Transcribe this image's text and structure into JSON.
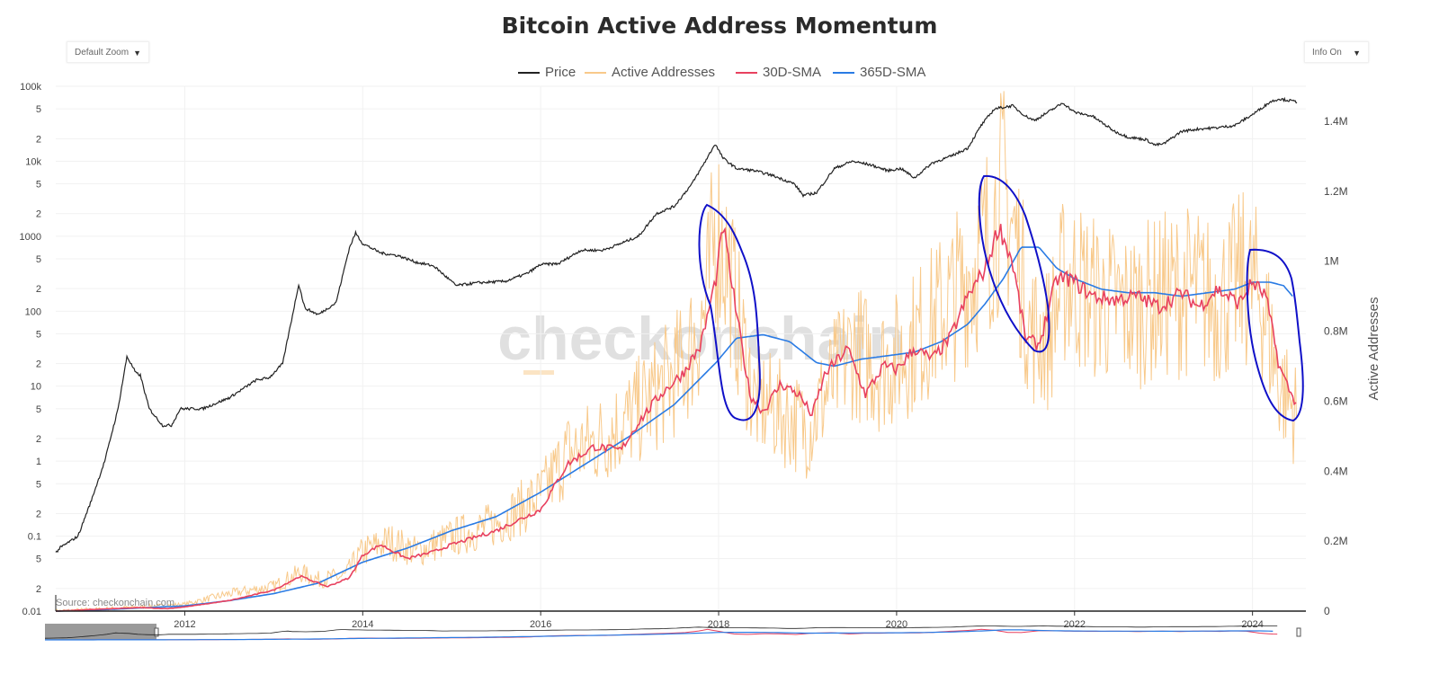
{
  "header": {
    "title": "Bitcoin Active Address Momentum"
  },
  "controls": {
    "zoom_label": "Default Zoom",
    "info_label": "Info On"
  },
  "legend": [
    {
      "label": "Price",
      "color": "#222222"
    },
    {
      "label": "Active Addresses",
      "color": "#f8c98a"
    },
    {
      "label": "30D-SMA",
      "color": "#e8415f"
    },
    {
      "label": "365D-SMA",
      "color": "#2a7be4"
    }
  ],
  "watermark": "checkonchain",
  "source": "Source: checkonchain.com",
  "chart_data": {
    "type": "line",
    "title": "Bitcoin Active Address Momentum",
    "xlabel": "",
    "x_ticks": [
      "2012",
      "2014",
      "2016",
      "2018",
      "2020",
      "2022",
      "2024"
    ],
    "y_left": {
      "scale": "log",
      "range": [
        0.01,
        100000
      ],
      "tick_labels": [
        "0.01",
        "2",
        "5",
        "0.1",
        "2",
        "5",
        "1",
        "2",
        "5",
        "10",
        "2",
        "5",
        "100",
        "2",
        "5",
        "1000",
        "2",
        "5",
        "10k",
        "2",
        "5",
        "100k"
      ]
    },
    "y_right": {
      "label": "Active Addresses",
      "range": [
        0,
        1500000
      ],
      "tick_labels": [
        "0",
        "0.2M",
        "0.4M",
        "0.6M",
        "0.8M",
        "1M",
        "1.2M",
        "1.4M"
      ]
    },
    "series": [
      {
        "name": "Price",
        "axis": "left",
        "color": "#222222",
        "x": [
          2010.55,
          2010.6,
          2010.8,
          2010.95,
          2011.1,
          2011.25,
          2011.35,
          2011.45,
          2011.5,
          2011.6,
          2011.75,
          2011.85,
          2011.95,
          2012.2,
          2012.5,
          2012.8,
          2012.95,
          2013.1,
          2013.25,
          2013.28,
          2013.35,
          2013.5,
          2013.7,
          2013.85,
          2013.92,
          2014.0,
          2014.2,
          2014.4,
          2014.6,
          2014.8,
          2015.05,
          2015.3,
          2015.6,
          2015.85,
          2016.0,
          2016.2,
          2016.45,
          2016.7,
          2016.9,
          2017.1,
          2017.3,
          2017.5,
          2017.7,
          2017.85,
          2017.96,
          2018.05,
          2018.2,
          2018.4,
          2018.6,
          2018.85,
          2018.95,
          2019.1,
          2019.3,
          2019.5,
          2019.7,
          2019.9,
          2020.05,
          2020.2,
          2020.4,
          2020.6,
          2020.8,
          2020.95,
          2021.1,
          2021.3,
          2021.45,
          2021.55,
          2021.7,
          2021.87,
          2022.0,
          2022.2,
          2022.45,
          2022.6,
          2022.8,
          2022.9,
          2023.0,
          2023.2,
          2023.4,
          2023.6,
          2023.8,
          2024.0,
          2024.2,
          2024.3,
          2024.5
        ],
        "y": [
          0.06,
          0.07,
          0.1,
          0.3,
          1,
          5,
          25,
          15,
          14,
          5,
          3,
          3,
          5,
          5,
          7,
          12,
          13,
          20,
          150,
          230,
          110,
          90,
          130,
          700,
          1100,
          800,
          600,
          550,
          450,
          400,
          220,
          240,
          250,
          320,
          420,
          430,
          650,
          650,
          800,
          1000,
          2000,
          2500,
          5000,
          10000,
          17000,
          11000,
          8000,
          7500,
          6500,
          5000,
          3500,
          3800,
          8000,
          10000,
          9000,
          7500,
          8000,
          6000,
          9500,
          11500,
          15000,
          30000,
          50000,
          55000,
          40000,
          35000,
          45000,
          60000,
          45000,
          40000,
          25000,
          21000,
          19500,
          16500,
          17000,
          25000,
          27000,
          28000,
          30000,
          42000,
          62000,
          68000,
          62000
        ]
      },
      {
        "name": "Active Addresses",
        "axis": "right",
        "color": "#f8c98a",
        "x": [
          2010.55,
          2011.0,
          2011.5,
          2012.0,
          2012.5,
          2013.0,
          2013.3,
          2013.5,
          2013.8,
          2014.0,
          2014.3,
          2014.6,
          2015.0,
          2015.5,
          2016.0,
          2016.3,
          2016.6,
          2017.0,
          2017.3,
          2017.6,
          2017.85,
          2017.97,
          2018.1,
          2018.2,
          2018.4,
          2018.6,
          2018.8,
          2019.0,
          2019.2,
          2019.5,
          2019.8,
          2020.0,
          2020.3,
          2020.6,
          2020.9,
          2021.0,
          2021.2,
          2021.35,
          2021.5,
          2021.7,
          2021.9,
          2022.2,
          2022.6,
          2023.0,
          2023.3,
          2023.6,
          2023.9,
          2024.1,
          2024.3,
          2024.5
        ],
        "y": [
          0,
          5000,
          12000,
          20000,
          50000,
          70000,
          110000,
          90000,
          100000,
          170000,
          200000,
          170000,
          210000,
          250000,
          330000,
          450000,
          480000,
          550000,
          620000,
          700000,
          850000,
          1100000,
          1000000,
          850000,
          600000,
          580000,
          550000,
          520000,
          620000,
          750000,
          700000,
          720000,
          800000,
          880000,
          1000000,
          1050000,
          1200000,
          1050000,
          800000,
          780000,
          960000,
          900000,
          860000,
          900000,
          920000,
          880000,
          950000,
          900000,
          650000,
          560000
        ]
      },
      {
        "name": "30D-SMA",
        "axis": "right",
        "color": "#e8415f",
        "x": [
          2010.55,
          2011.0,
          2011.5,
          2011.8,
          2012.0,
          2012.5,
          2013.0,
          2013.3,
          2013.6,
          2013.85,
          2014.0,
          2014.2,
          2014.5,
          2014.8,
          2015.0,
          2015.5,
          2016.0,
          2016.3,
          2016.6,
          2016.9,
          2017.1,
          2017.35,
          2017.6,
          2017.8,
          2017.97,
          2018.05,
          2018.2,
          2018.35,
          2018.5,
          2018.7,
          2018.9,
          2019.05,
          2019.2,
          2019.45,
          2019.65,
          2019.85,
          2020.0,
          2020.2,
          2020.4,
          2020.6,
          2020.8,
          2021.0,
          2021.15,
          2021.3,
          2021.45,
          2021.6,
          2021.8,
          2021.95,
          2022.2,
          2022.45,
          2022.7,
          2022.95,
          2023.2,
          2023.4,
          2023.6,
          2023.85,
          2024.0,
          2024.15,
          2024.3,
          2024.45,
          2024.5
        ],
        "y": [
          0,
          5000,
          10000,
          7000,
          12000,
          30000,
          60000,
          100000,
          70000,
          95000,
          160000,
          190000,
          150000,
          170000,
          190000,
          230000,
          290000,
          420000,
          470000,
          460000,
          540000,
          620000,
          680000,
          760000,
          950000,
          1100000,
          850000,
          620000,
          570000,
          650000,
          620000,
          560000,
          680000,
          750000,
          620000,
          700000,
          690000,
          750000,
          720000,
          780000,
          900000,
          980000,
          1100000,
          1000000,
          780000,
          760000,
          950000,
          950000,
          900000,
          890000,
          900000,
          870000,
          910000,
          870000,
          920000,
          880000,
          940000,
          900000,
          700000,
          610000,
          600000
        ]
      },
      {
        "name": "365D-SMA",
        "axis": "right",
        "color": "#2a7be4",
        "x": [
          2010.55,
          2011.0,
          2012.0,
          2012.5,
          2013.0,
          2013.5,
          2014.0,
          2014.5,
          2015.0,
          2015.5,
          2016.0,
          2016.5,
          2017.0,
          2017.5,
          2017.97,
          2018.2,
          2018.5,
          2018.8,
          2019.1,
          2019.3,
          2019.6,
          2019.9,
          2020.2,
          2020.5,
          2020.8,
          2021.0,
          2021.2,
          2021.4,
          2021.6,
          2021.8,
          2022.0,
          2022.3,
          2022.6,
          2022.9,
          2023.2,
          2023.5,
          2023.8,
          2024.0,
          2024.2,
          2024.35,
          2024.45
        ],
        "y": [
          0,
          3000,
          15000,
          30000,
          50000,
          80000,
          140000,
          180000,
          230000,
          270000,
          340000,
          420000,
          500000,
          590000,
          710000,
          780000,
          790000,
          770000,
          710000,
          700000,
          720000,
          730000,
          740000,
          770000,
          820000,
          880000,
          950000,
          1040000,
          1040000,
          980000,
          950000,
          920000,
          910000,
          910000,
          900000,
          910000,
          920000,
          940000,
          940000,
          930000,
          900000
        ]
      }
    ]
  }
}
